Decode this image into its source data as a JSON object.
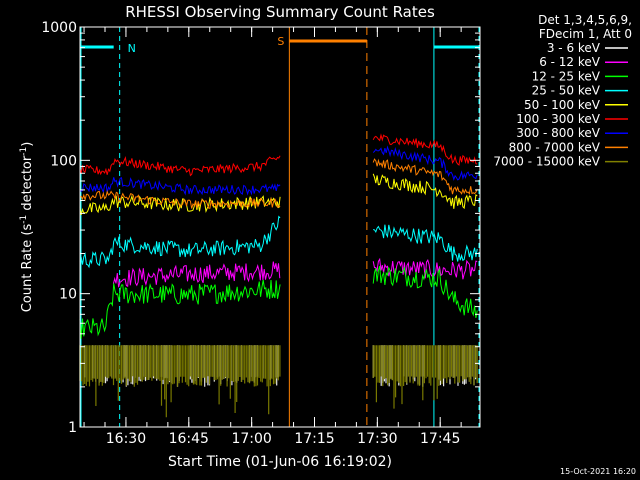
{
  "chart_data": {
    "type": "line",
    "title": "RHESSI Observing Summary Count Rates",
    "xlabel": "Start Time (01-Jun-06 16:19:02)",
    "ylabel": "Count Rate (s",
    "ylabel_sup1": "-1",
    "ylabel_mid": " detector",
    "ylabel_sup2": "-1",
    "ylabel_end": ")",
    "y_scale": "log",
    "ylim": [
      1,
      1000
    ],
    "xlim": [
      "16:19:02",
      "17:54:30"
    ],
    "x_tick_labels": [
      "16:30",
      "16:45",
      "17:00",
      "17:15",
      "17:30",
      "17:45"
    ],
    "y_tick_labels": [
      "1",
      "10",
      "100",
      "1000"
    ],
    "legend_header": [
      "Det 1,3,4,5,6,9,",
      "FDecim 1, Att 0"
    ],
    "timestamp": "15-Oct-2021 16:20",
    "flags": [
      {
        "label": "N",
        "color": "#00ffff",
        "t_start": "16:19:02",
        "t_end": "16:28:30",
        "t_start2": "17:43:30",
        "t_end2": "17:54:30"
      },
      {
        "label": "S",
        "color": "#ff8000",
        "t_start": "17:09:00",
        "t_end": "17:27:30"
      }
    ],
    "series": [
      {
        "name": "3 - 6 keV",
        "color": "#ffffff",
        "segments": [
          [
            [
              "16:19",
              "3.3"
            ],
            [
              "17:07",
              "3.3"
            ]
          ],
          [
            [
              "17:29",
              "3.3"
            ],
            [
              "17:54",
              "3.3"
            ]
          ]
        ]
      },
      {
        "name": "6 - 12 keV",
        "color": "#ff00ff",
        "segments": [
          [
            [
              "16:27",
              "13"
            ],
            [
              "16:45",
              "14"
            ],
            [
              "17:07",
              "15"
            ]
          ],
          [
            [
              "17:29",
              "16"
            ],
            [
              "17:45",
              "15"
            ],
            [
              "17:54",
              "15"
            ]
          ]
        ]
      },
      {
        "name": "12 - 25 keV",
        "color": "#00ff00",
        "segments": [
          [
            [
              "16:19",
              "5.5"
            ],
            [
              "16:25",
              "5.5"
            ],
            [
              "16:27",
              "10"
            ],
            [
              "16:45",
              "9.8"
            ],
            [
              "17:07",
              "11"
            ]
          ],
          [
            [
              "17:29",
              "14"
            ],
            [
              "17:45",
              "13"
            ],
            [
              "17:48",
              "9"
            ],
            [
              "17:54",
              "7.2"
            ]
          ]
        ]
      },
      {
        "name": "25 - 50 keV",
        "color": "#00ffff",
        "segments": [
          [
            [
              "16:19",
              "18"
            ],
            [
              "16:26",
              "18"
            ],
            [
              "16:27",
              "24"
            ],
            [
              "16:45",
              "21"
            ],
            [
              "17:02",
              "23"
            ],
            [
              "17:07",
              "36"
            ]
          ],
          [
            [
              "17:29",
              "30"
            ],
            [
              "17:45",
              "26"
            ],
            [
              "17:48",
              "20"
            ],
            [
              "17:54",
              "20"
            ]
          ]
        ]
      },
      {
        "name": "50 - 100 keV",
        "color": "#ffff00",
        "segments": [
          [
            [
              "16:19",
              "43"
            ],
            [
              "16:25",
              "43"
            ],
            [
              "16:27",
              "49"
            ],
            [
              "16:45",
              "46"
            ],
            [
              "17:07",
              "49"
            ]
          ],
          [
            [
              "17:29",
              "72"
            ],
            [
              "17:45",
              "60"
            ],
            [
              "17:48",
              "48"
            ],
            [
              "17:54",
              "50"
            ]
          ]
        ]
      },
      {
        "name": "100 - 300 keV",
        "color": "#ff0000",
        "segments": [
          [
            [
              "16:19",
              "85"
            ],
            [
              "16:26",
              "83"
            ],
            [
              "16:27",
              "100"
            ],
            [
              "16:45",
              "83"
            ],
            [
              "17:02",
              "90"
            ],
            [
              "17:07",
              "107"
            ]
          ],
          [
            [
              "17:29",
              "148"
            ],
            [
              "17:45",
              "128"
            ],
            [
              "17:48",
              "100"
            ],
            [
              "17:54",
              "100"
            ]
          ]
        ]
      },
      {
        "name": "300 - 800 keV",
        "color": "#0000ff",
        "segments": [
          [
            [
              "16:19",
              "63"
            ],
            [
              "16:26",
              "62"
            ],
            [
              "16:27",
              "70"
            ],
            [
              "16:45",
              "60"
            ],
            [
              "17:07",
              "61"
            ]
          ],
          [
            [
              "17:29",
              "122"
            ],
            [
              "17:45",
              "98"
            ],
            [
              "17:48",
              "76"
            ],
            [
              "17:54",
              "78"
            ]
          ]
        ]
      },
      {
        "name": "800 - 7000 keV",
        "color": "#ff8000",
        "segments": [
          [
            [
              "16:19",
              "55"
            ],
            [
              "16:26",
              "54"
            ],
            [
              "16:27",
              "54"
            ],
            [
              "16:45",
              "47"
            ],
            [
              "17:07",
              "48"
            ]
          ],
          [
            [
              "17:29",
              "97"
            ],
            [
              "17:45",
              "78"
            ],
            [
              "17:48",
              "60"
            ],
            [
              "17:54",
              "60"
            ]
          ]
        ]
      },
      {
        "name": "7000 - 15000 keV",
        "color": "#808000",
        "segments": [
          [
            [
              "16:19",
              "3.0"
            ],
            [
              "17:07",
              "3.0"
            ]
          ],
          [
            [
              "17:29",
              "3.0"
            ],
            [
              "17:54",
              "3.0"
            ]
          ]
        ]
      }
    ]
  }
}
